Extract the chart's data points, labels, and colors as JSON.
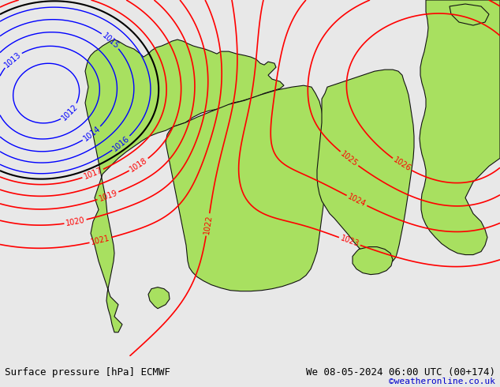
{
  "title_left": "Surface pressure [hPa] ECMWF",
  "title_right": "We 08-05-2024 06:00 UTC (00+174)",
  "copyright": "©weatheronline.co.uk",
  "copyright_color": "#0000cc",
  "background_color": "#e8e8e8",
  "land_color": "#a8e060",
  "sea_color": "#d0d0d0",
  "text_color": "#000000",
  "bottom_bar_color": "#ffffff",
  "contour_red": "#ff0000",
  "contour_blue": "#0000ff",
  "contour_black": "#000000",
  "figsize": [
    6.34,
    4.9
  ],
  "dpi": 100
}
